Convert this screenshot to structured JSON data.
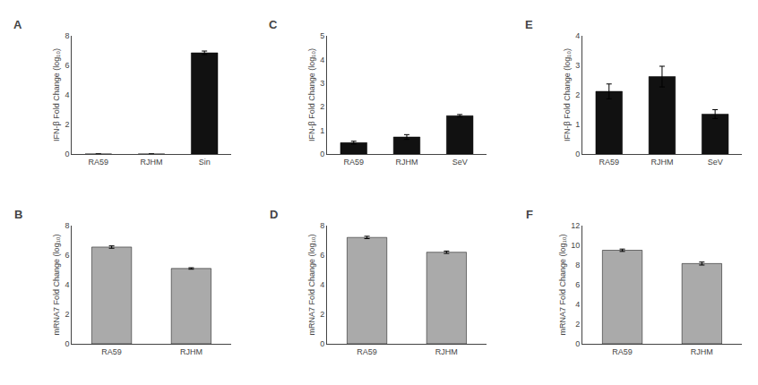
{
  "chart_data": [
    {
      "type": "bar",
      "title": "A",
      "categories": [
        "RA59",
        "RJHM",
        "Sin"
      ],
      "values": [
        0.0,
        0.0,
        6.85
      ],
      "errors": [
        0.0,
        0.0,
        0.12
      ],
      "ylim": [
        0,
        8
      ],
      "yticks": [
        0,
        2,
        4,
        6,
        8
      ],
      "ylabel": "IFN-β Fold Change (log₁₀)",
      "colors": [
        "#111111",
        "#111111",
        "#111111"
      ],
      "grid": false
    },
    {
      "type": "bar",
      "title": "B",
      "categories": [
        "RA59",
        "RJHM"
      ],
      "values": [
        6.55,
        5.1
      ],
      "errors": [
        0.08,
        0.05
      ],
      "ylim": [
        0,
        8
      ],
      "yticks": [
        0,
        2,
        4,
        6,
        8
      ],
      "ylabel": "mRNA7 Fold Change (log₁₀)",
      "colors": [
        "#aaaaaa",
        "#aaaaaa"
      ],
      "grid": false
    },
    {
      "type": "bar",
      "title": "C",
      "categories": [
        "RA59",
        "RJHM",
        "SeV"
      ],
      "values": [
        0.48,
        0.72,
        1.62
      ],
      "errors": [
        0.06,
        0.1,
        0.05
      ],
      "ylim": [
        0,
        5
      ],
      "yticks": [
        0,
        1,
        2,
        3,
        4,
        5
      ],
      "ylabel": "IFN-β Fold Change (log₁₀)",
      "colors": [
        "#111111",
        "#111111",
        "#111111"
      ],
      "grid": false
    },
    {
      "type": "bar",
      "title": "D",
      "categories": [
        "RA59",
        "RJHM"
      ],
      "values": [
        7.2,
        6.2
      ],
      "errors": [
        0.08,
        0.08
      ],
      "ylim": [
        0,
        8
      ],
      "yticks": [
        0,
        2,
        4,
        6,
        8
      ],
      "ylabel": "mRNA7 Fold Change (log₁₀)",
      "colors": [
        "#aaaaaa",
        "#aaaaaa"
      ],
      "grid": false
    },
    {
      "type": "bar",
      "title": "E",
      "categories": [
        "RA59",
        "RJHM",
        "SeV"
      ],
      "values": [
        2.12,
        2.62,
        1.35
      ],
      "errors": [
        0.25,
        0.35,
        0.15
      ],
      "ylim": [
        0,
        4
      ],
      "yticks": [
        0,
        1,
        2,
        3,
        4
      ],
      "ylabel": "IFN-β Fold Change (log₁₀)",
      "colors": [
        "#111111",
        "#111111",
        "#111111"
      ],
      "grid": false
    },
    {
      "type": "bar",
      "title": "F",
      "categories": [
        "RA59",
        "RJHM"
      ],
      "values": [
        9.5,
        8.15
      ],
      "errors": [
        0.12,
        0.15
      ],
      "ylim": [
        0,
        12
      ],
      "yticks": [
        0,
        2,
        4,
        6,
        8,
        10,
        12
      ],
      "ylabel": "mRNA7 Fold Change (log₁₀)",
      "colors": [
        "#aaaaaa",
        "#aaaaaa"
      ],
      "grid": false
    }
  ]
}
